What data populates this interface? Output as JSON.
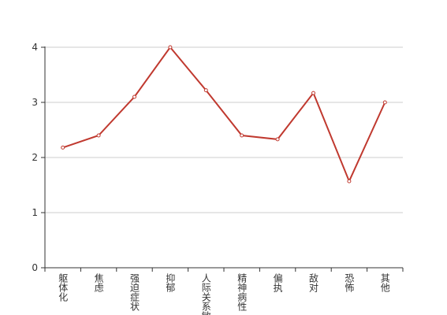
{
  "chart_data": {
    "type": "line",
    "categories": [
      "躯体化",
      "焦虑",
      "强迫症状",
      "抑郁",
      "人际关系敏感",
      "精神病性",
      "偏执",
      "敌对",
      "恐怖",
      "其他"
    ],
    "series": [
      {
        "color": "#c0392f",
        "values": [
          2.18,
          2.4,
          3.1,
          4.0,
          3.22,
          2.4,
          2.33,
          3.17,
          1.57,
          3.0
        ]
      }
    ],
    "ylim": [
      0,
      4
    ],
    "yticks": [
      0,
      1,
      2,
      3,
      4
    ],
    "grid": true
  }
}
